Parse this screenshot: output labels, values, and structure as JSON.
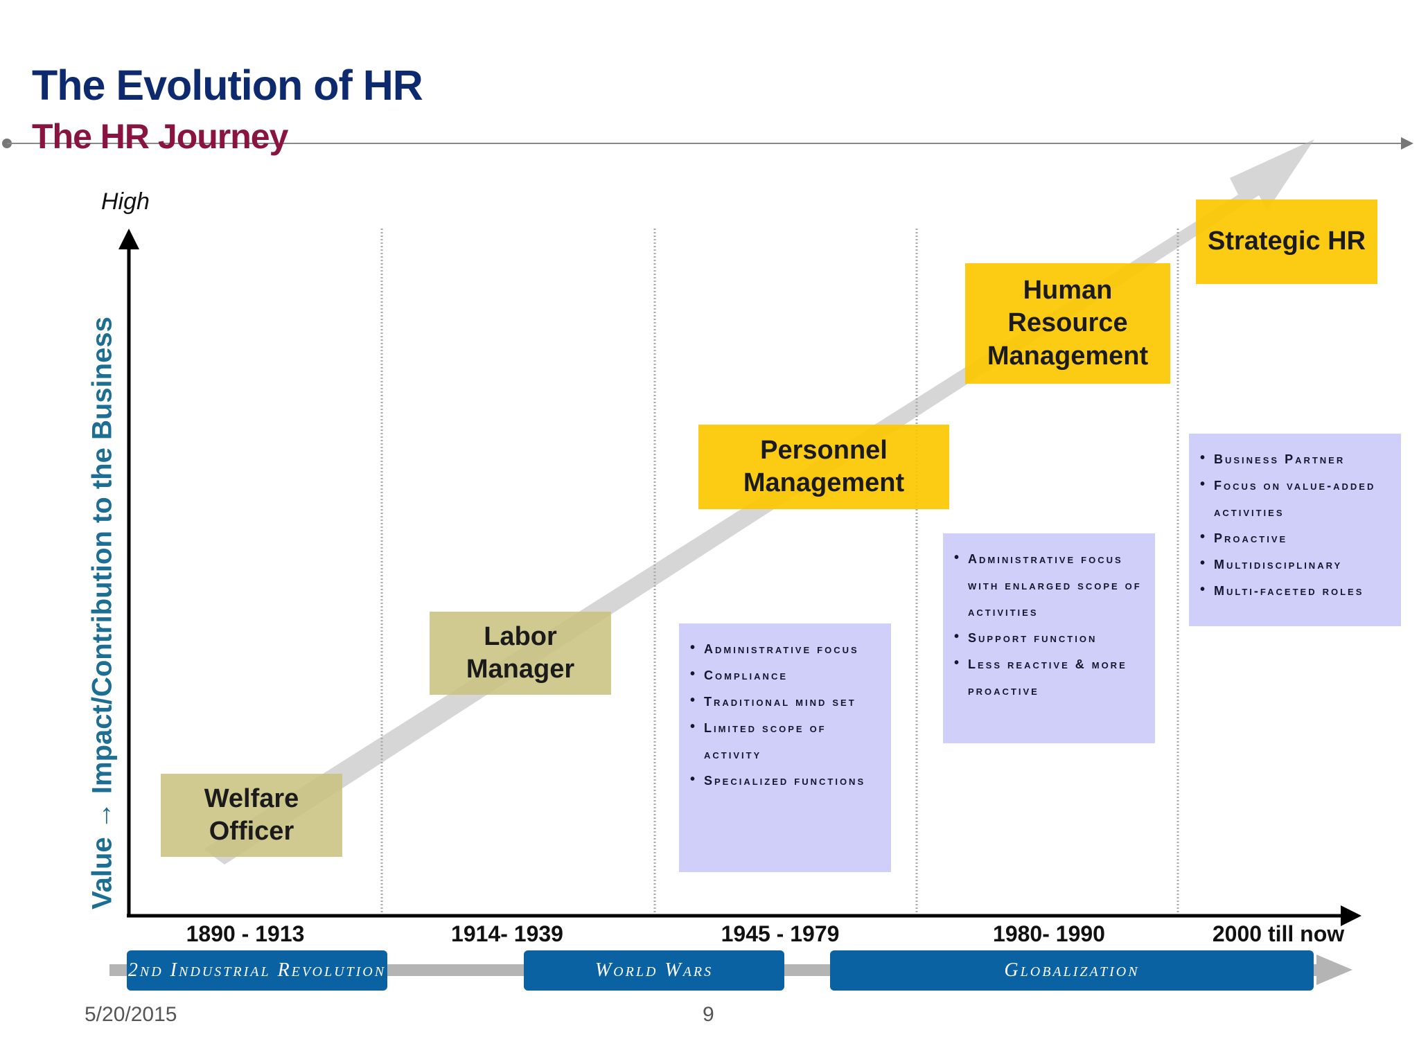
{
  "slide": {
    "title": "The Evolution of HR",
    "subtitle": "The HR Journey",
    "y_axis_label": "Value → Impact/Contribution to the Business",
    "high_label": "High",
    "footer_date": "5/20/2015",
    "footer_page": "9"
  },
  "eras": [
    {
      "label": "1890 - 1913"
    },
    {
      "label": "1914- 1939"
    },
    {
      "label": "1945 - 1979"
    },
    {
      "label": "1980- 1990"
    },
    {
      "label": "2000 till now"
    }
  ],
  "roles": [
    {
      "label": "Welfare\nOfficer",
      "color": "#c9c382"
    },
    {
      "label": "Labor\nManager",
      "color": "#c9c382"
    },
    {
      "label": "Personnel\nManagement",
      "color": "#fcc800"
    },
    {
      "label": "Human\nResource\nManagement",
      "color": "#fcc800"
    },
    {
      "label": "Strategic HR",
      "color": "#fcc800"
    }
  ],
  "trait_lists": {
    "personnel": [
      "Administrative focus",
      "Compliance",
      "Traditional mind set",
      "Limited scope of activity",
      "Specialized functions"
    ],
    "hrm": [
      "Administrative focus with enlarged scope of activities",
      "Support function",
      "Less reactive & more proactive"
    ],
    "strategic": [
      "Business Partner",
      "Focus on value-added activities",
      "Proactive",
      "Multidisciplinary",
      "Multi-faceted roles"
    ]
  },
  "periods": [
    {
      "label": "2nd Industrial Revolution"
    },
    {
      "label": "World Wars"
    },
    {
      "label": "Globalization"
    }
  ],
  "colors": {
    "title": "#0e2a6e",
    "subtitle": "#8a1440",
    "axis_label": "#1d6e93",
    "olive_box": "#c9c382",
    "gold_box": "#fcc800",
    "trait_box": "#cdccfa",
    "period_bar": "#0b62a2"
  }
}
